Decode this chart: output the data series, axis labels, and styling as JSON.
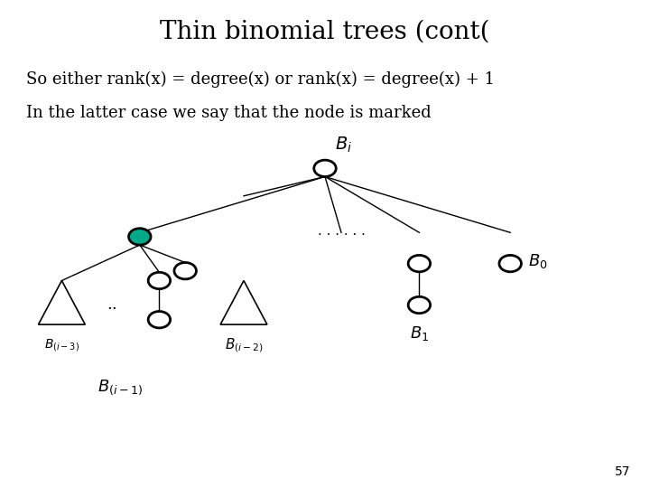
{
  "title": "Thin binomial trees (cont(",
  "line1": "So either rank(x) = degree(x) or rank(x) = degree(x) + 1",
  "line2": "In the latter case we say that the node is marked",
  "page_num": "57",
  "bg_color": "#ffffff",
  "text_color": "#000000",
  "marked_node_color": "#00aa88",
  "title_fontsize": 20,
  "body_fontsize": 13,
  "label_fontsize": 12
}
